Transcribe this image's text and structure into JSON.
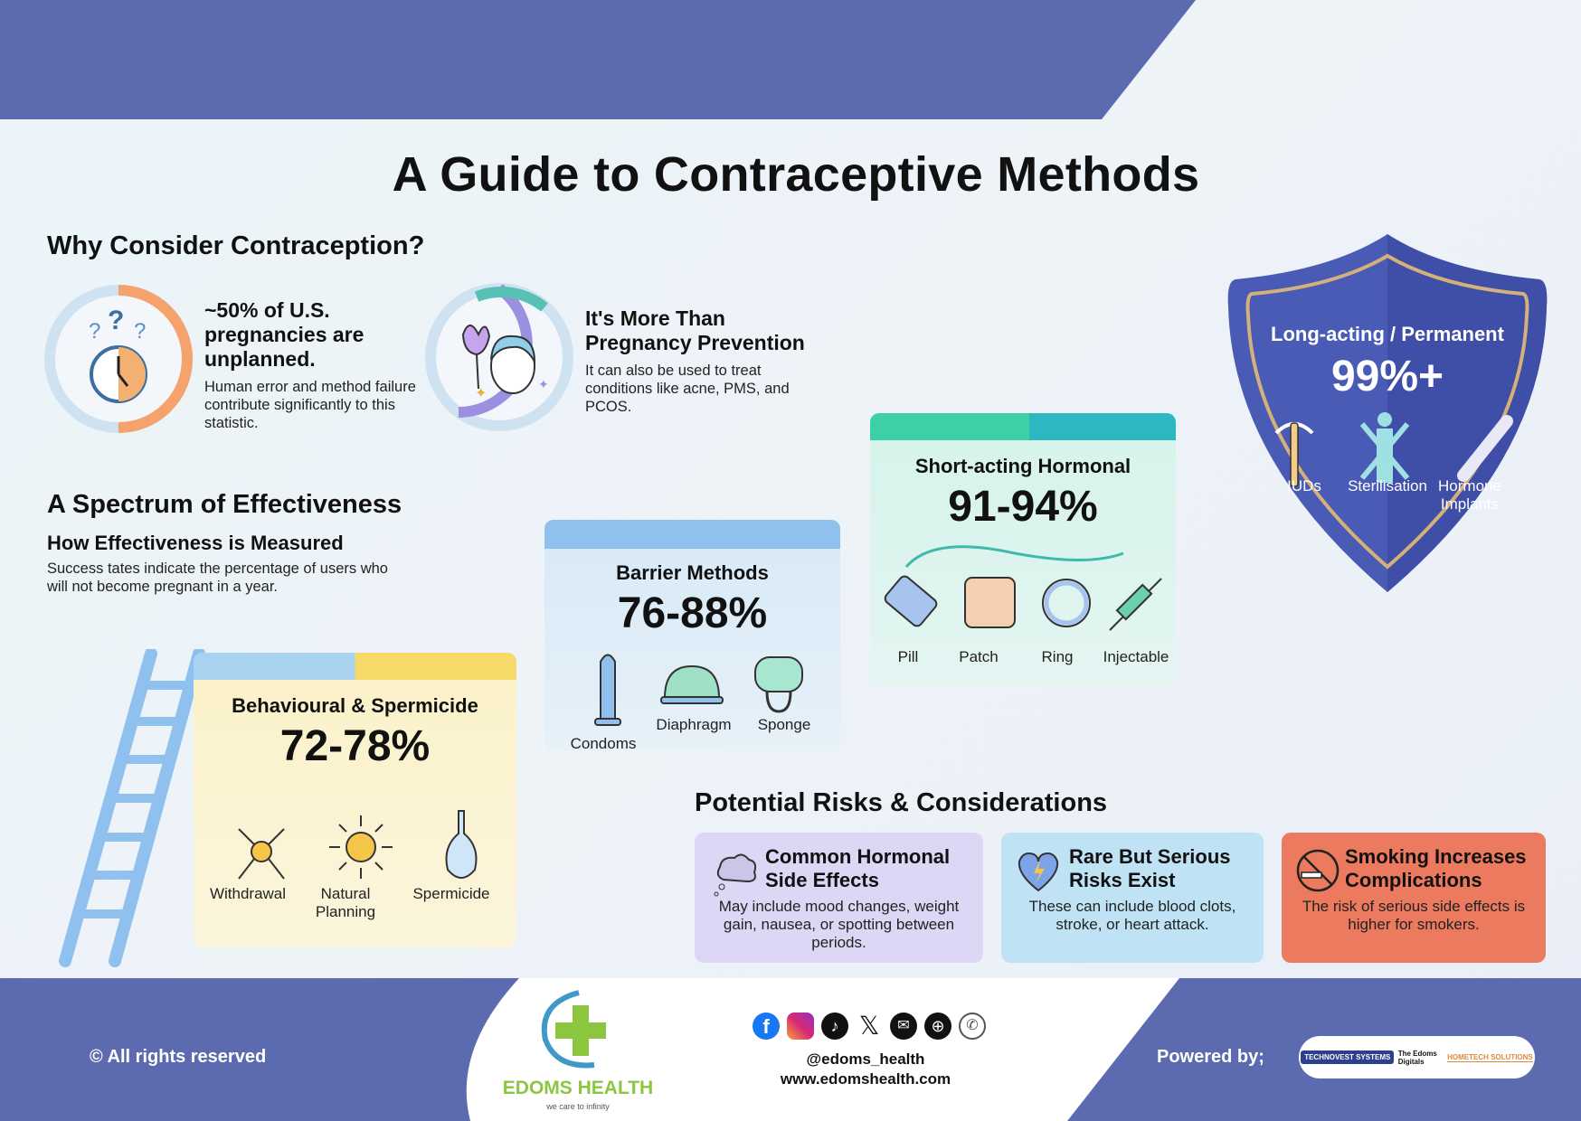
{
  "title": "A Guide to Contraceptive Methods",
  "why": {
    "heading": "Why Consider Contraception?",
    "stat": {
      "headline": "~50% of U.S. pregnancies are unplanned.",
      "body": "Human error and method failure contribute significantly to this statistic.",
      "icon": "clock-question-icon"
    },
    "more": {
      "headline": "It's More Than Pregnancy Prevention",
      "body": "It can also be used to treat conditions like acne, PMS, and PCOS.",
      "icon": "face-flower-icon"
    }
  },
  "spectrum": {
    "heading": "A Spectrum of Effectiveness",
    "subheading": "How Effectiveness is Measured",
    "description": "Success tates indicate the percentage of users who will not become pregnant in a year."
  },
  "tiers": [
    {
      "title": "Behavioural & Spermicide",
      "percent": "72-78%",
      "color": "#f7d96a",
      "items": [
        "Withdrawal",
        "Natural Planning",
        "Spermicide"
      ]
    },
    {
      "title": "Barrier Methods",
      "percent": "76-88%",
      "color": "#7fb8ea",
      "items": [
        "Condoms",
        "Diaphragm",
        "Sponge"
      ]
    },
    {
      "title": "Short-acting Hormonal",
      "percent": "91-94%",
      "color": "#3ccfa8",
      "items": [
        "Pill",
        "Patch",
        "Ring",
        "Injectable"
      ]
    },
    {
      "title": "Long-acting / Permanent",
      "percent": "99%+",
      "color": "#4a5bb5",
      "items": [
        "IUDs",
        "Sterilisation",
        "Hormone Implants"
      ]
    }
  ],
  "risks": {
    "heading": "Potential Risks & Considerations",
    "cards": [
      {
        "title": "Common Hormonal Side Effects",
        "body": "May include mood changes, weight gain, nausea, or spotting between periods.",
        "icon": "thought-cloud-icon",
        "color": "#ddd6f5"
      },
      {
        "title": "Rare But Serious Risks Exist",
        "body": "These can include blood clots, stroke, or heart attack.",
        "icon": "heart-lightning-icon",
        "color": "#bfe3f5"
      },
      {
        "title": "Smoking Increases Complications",
        "body": "The risk of serious side effects is higher for smokers.",
        "icon": "no-smoking-icon",
        "color": "#ec7a5e"
      }
    ]
  },
  "footer": {
    "rights": "© All rights reserved",
    "brand": "EDOMS HEALTH",
    "brand_tagline": "we care to infinity",
    "handle": "@edoms_health",
    "website": "www.edomshealth.com",
    "powered_by": "Powered by;",
    "partners": [
      "TECHNOVEST SYSTEMS",
      "The Edoms Digitals",
      "HOMETECH SOLUTIONS"
    ],
    "social_icons": [
      "facebook-icon",
      "instagram-icon",
      "tiktok-icon",
      "x-icon",
      "email-icon",
      "globe-icon",
      "whatsapp-icon"
    ],
    "band_color": "#5c6bb0"
  }
}
